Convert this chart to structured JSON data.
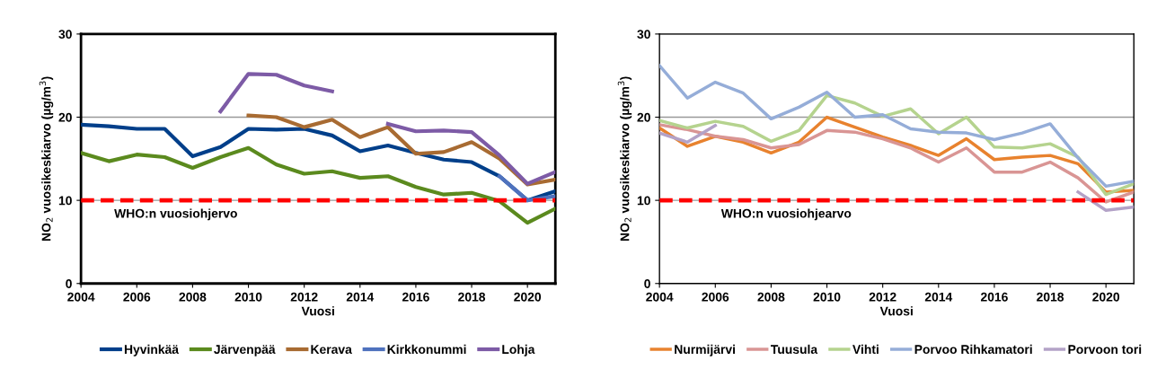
{
  "chart_data": [
    {
      "type": "line",
      "xlabel": "Vuosi",
      "ylabel": "NO$_{2}$ vuosikeskiarvo (µg/m$^{3}$)",
      "x": [
        2004,
        2005,
        2006,
        2007,
        2008,
        2009,
        2010,
        2011,
        2012,
        2013,
        2014,
        2015,
        2016,
        2017,
        2018,
        2019,
        2020,
        2021
      ],
      "xlim": [
        2004,
        2021
      ],
      "xticks": [
        2004,
        2006,
        2008,
        2010,
        2012,
        2014,
        2016,
        2018,
        2020
      ],
      "ylim": [
        0,
        30
      ],
      "yticks": [
        0,
        10,
        20,
        30
      ],
      "grid": "y",
      "legend": "bottom",
      "marker": "none",
      "line_style": "solid",
      "series": [
        {
          "name": "Hyvinkää",
          "color": "#003f8a",
          "values": [
            19.1,
            18.9,
            18.6,
            18.6,
            15.3,
            16.4,
            18.6,
            18.5,
            18.6,
            17.8,
            15.9,
            16.6,
            15.7,
            14.9,
            14.6,
            12.9,
            10.0,
            11.1
          ]
        },
        {
          "name": "Järvenpää",
          "color": "#5b8a1e",
          "values": [
            15.7,
            14.7,
            15.5,
            15.2,
            13.9,
            15.2,
            16.3,
            14.3,
            13.2,
            13.5,
            12.7,
            12.9,
            11.6,
            10.7,
            10.9,
            9.9,
            7.3,
            9.0
          ]
        },
        {
          "name": "Kerava",
          "color": "#a86b32",
          "values": [
            null,
            null,
            null,
            null,
            null,
            null,
            20.2,
            20.0,
            18.8,
            19.7,
            17.6,
            18.8,
            15.6,
            15.8,
            17.0,
            15.0,
            11.9,
            12.5
          ]
        },
        {
          "name": "Kirkkonummi",
          "color": "#4f72be",
          "values": [
            null,
            null,
            null,
            null,
            null,
            null,
            null,
            null,
            null,
            null,
            null,
            null,
            null,
            null,
            null,
            12.9,
            10.0,
            10.5
          ]
        },
        {
          "name": "Lohja",
          "color": "#7d5ba6",
          "values": [
            null,
            null,
            null,
            null,
            null,
            20.7,
            25.2,
            25.1,
            23.8,
            23.1,
            null,
            19.2,
            18.3,
            18.4,
            18.2,
            15.4,
            12.0,
            13.4
          ]
        }
      ],
      "ref_lines": [
        {
          "axis": "y",
          "value": 10,
          "color": "#ff0000",
          "line_style": "dashed",
          "label": "WHO:n vuosiohjervo"
        }
      ]
    },
    {
      "type": "line",
      "xlabel": "Vuosi",
      "ylabel": "NO$_{2}$ vuosikeskiarvo (µg/m$^{3}$)",
      "x": [
        2004,
        2005,
        2006,
        2007,
        2008,
        2009,
        2010,
        2011,
        2012,
        2013,
        2014,
        2015,
        2016,
        2017,
        2018,
        2019,
        2020,
        2021
      ],
      "xlim": [
        2004,
        2021
      ],
      "xticks": [
        2004,
        2006,
        2008,
        2010,
        2012,
        2014,
        2016,
        2018,
        2020
      ],
      "ylim": [
        0,
        30
      ],
      "yticks": [
        0,
        10,
        20,
        30
      ],
      "grid": "y",
      "legend": "bottom",
      "marker": "none",
      "line_style": "solid",
      "series": [
        {
          "name": "Nurmijärvi",
          "color": "#e8822e",
          "values": [
            18.7,
            16.5,
            17.7,
            17.0,
            15.7,
            17.0,
            20.0,
            18.8,
            17.6,
            16.6,
            15.4,
            17.4,
            14.9,
            15.2,
            15.4,
            14.4,
            11.0,
            11.2
          ]
        },
        {
          "name": "Tuusula",
          "color": "#d99594",
          "values": [
            19.1,
            18.5,
            17.7,
            17.3,
            16.3,
            16.7,
            18.4,
            18.2,
            17.4,
            16.3,
            14.6,
            16.3,
            13.4,
            13.4,
            14.6,
            12.7,
            9.8,
            11.0
          ]
        },
        {
          "name": "Vihti",
          "color": "#b5d38e",
          "values": [
            19.6,
            18.7,
            19.5,
            18.9,
            17.1,
            18.4,
            22.6,
            21.7,
            20.1,
            21.0,
            18.0,
            20.0,
            16.4,
            16.3,
            16.8,
            15.2,
            10.7,
            12.0
          ]
        },
        {
          "name": "Porvoo Rihkamatori",
          "color": "#95add8",
          "values": [
            26.2,
            22.3,
            24.2,
            22.9,
            19.8,
            21.2,
            23.0,
            20.0,
            20.3,
            18.6,
            18.2,
            18.1,
            17.3,
            18.1,
            19.2,
            15.1,
            11.7,
            12.3
          ]
        },
        {
          "name": "Porvoon tori",
          "color": "#b3a2c7",
          "values": [
            18.1,
            17.0,
            19.0,
            null,
            null,
            null,
            null,
            null,
            null,
            null,
            null,
            null,
            null,
            null,
            null,
            11.0,
            8.8,
            9.2
          ]
        }
      ],
      "ref_lines": [
        {
          "axis": "y",
          "value": 10,
          "color": "#ff0000",
          "line_style": "dashed",
          "label": "WHO:n vuosiohjearvo"
        }
      ]
    }
  ]
}
